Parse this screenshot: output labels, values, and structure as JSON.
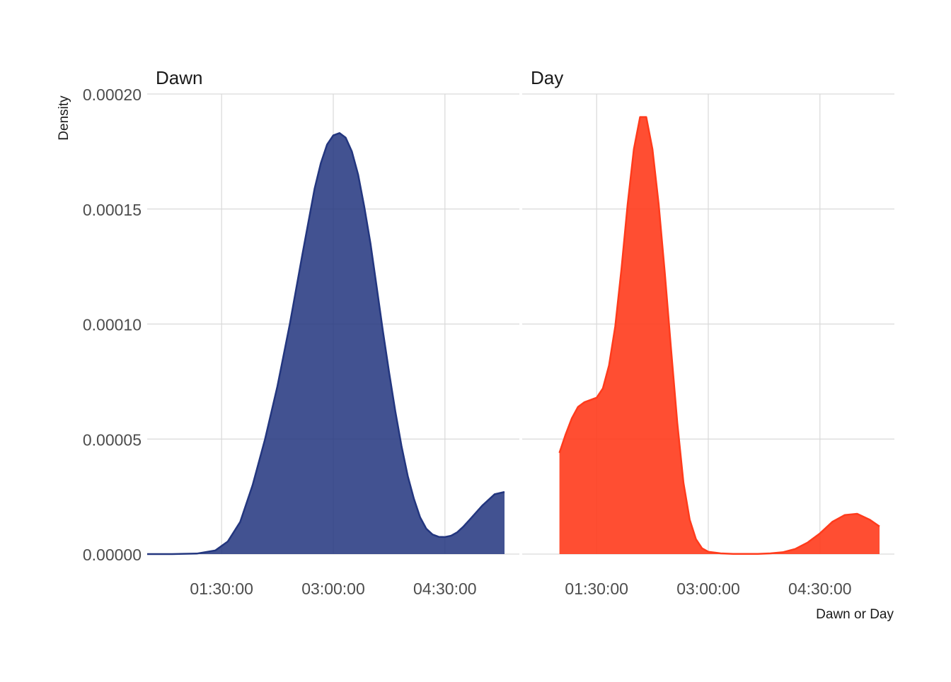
{
  "chart_data": {
    "type": "area",
    "ylabel": "Density",
    "xlabel": "Dawn or Day",
    "ylim": [
      0,
      0.0002
    ],
    "xlim_minutes": [
      30,
      330
    ],
    "y_ticks": [
      {
        "value": 0,
        "label": "0.00000"
      },
      {
        "value": 5e-05,
        "label": "0.00005"
      },
      {
        "value": 0.0001,
        "label": "0.00010"
      },
      {
        "value": 0.00015,
        "label": "0.00015"
      },
      {
        "value": 0.0002,
        "label": "0.00020"
      }
    ],
    "x_ticks": [
      {
        "value": 90,
        "label": "01:30:00"
      },
      {
        "value": 180,
        "label": "03:00:00"
      },
      {
        "value": 270,
        "label": "04:30:00"
      }
    ],
    "grid": true,
    "legend": "none",
    "panels": [
      {
        "name": "Dawn",
        "color": "#23367f",
        "x_minutes": [
          30,
          50,
          70,
          85,
          95,
          105,
          115,
          125,
          135,
          145,
          155,
          165,
          170,
          175,
          180,
          185,
          190,
          195,
          200,
          205,
          210,
          215,
          220,
          225,
          230,
          235,
          240,
          245,
          250,
          255,
          260,
          265,
          270,
          275,
          280,
          285,
          290,
          300,
          310,
          318
        ],
        "density": [
          0.0,
          0.0,
          2e-07,
          1.6e-06,
          5.5e-06,
          1.4e-05,
          3e-05,
          5e-05,
          7.3e-05,
          0.0001,
          0.00013,
          0.000159,
          0.00017,
          0.000178,
          0.000182,
          0.000183,
          0.000181,
          0.000175,
          0.000165,
          0.000151,
          0.000135,
          0.000116,
          9.7e-05,
          7.9e-05,
          6.2e-05,
          4.7e-05,
          3.4e-05,
          2.4e-05,
          1.6e-05,
          1.1e-05,
          8.5e-06,
          7.5e-06,
          7.4e-06,
          8e-06,
          9.5e-06,
          1.2e-05,
          1.5e-05,
          2.1e-05,
          2.6e-05,
          2.7e-05
        ]
      },
      {
        "name": "Day",
        "color": "#ff3b1c",
        "x_minutes": [
          60,
          65,
          70,
          75,
          80,
          90,
          95,
          100,
          105,
          110,
          115,
          120,
          125,
          130,
          135,
          140,
          145,
          150,
          155,
          160,
          165,
          170,
          175,
          180,
          190,
          200,
          210,
          220,
          230,
          240,
          250,
          260,
          270,
          280,
          290,
          300,
          310,
          318
        ],
        "density": [
          4.4e-05,
          5.2e-05,
          5.9e-05,
          6.4e-05,
          6.6e-05,
          6.8e-05,
          7.2e-05,
          8.2e-05,
          9.9e-05,
          0.000124,
          0.000152,
          0.000176,
          0.00019,
          0.00019,
          0.000176,
          0.000152,
          0.000122,
          8.9e-05,
          5.7e-05,
          3.1e-05,
          1.5e-05,
          6.5e-06,
          2.5e-06,
          1e-06,
          3e-07,
          1e-07,
          1e-07,
          1e-07,
          3e-07,
          8e-07,
          2.2e-06,
          5e-06,
          9e-06,
          1.4e-05,
          1.7e-05,
          1.75e-05,
          1.5e-05,
          1.2e-05
        ]
      }
    ]
  }
}
